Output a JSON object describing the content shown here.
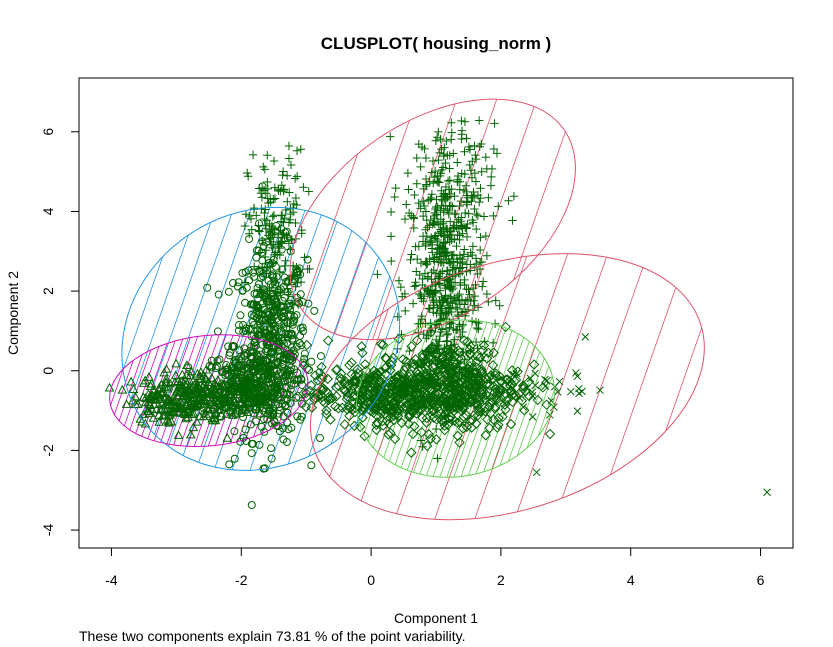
{
  "chart_data": {
    "type": "scatter",
    "title": "CLUSPLOT( housing_norm )",
    "xlabel": "Component 1",
    "ylabel": "Component 2",
    "subtitle": "These two components explain 73.81 % of the point variability.",
    "xlim": [
      -4.5,
      6.5
    ],
    "ylim": [
      -4.45,
      7.35
    ],
    "x_ticks": [
      -4,
      -2,
      0,
      2,
      4,
      6
    ],
    "y_ticks": [
      -4,
      -2,
      0,
      2,
      4,
      6
    ],
    "point_color": "#006400",
    "clusters": [
      {
        "marker": "plus",
        "ellipse": {
          "cx": 0.95,
          "cy": 3.8,
          "rx": 2.45,
          "ry": 2.45,
          "angle": -34
        },
        "ellipse_color": "#DF536B",
        "shade_color": "#DF536B",
        "shade_density": "sparse",
        "center": [
          1.2,
          3.1
        ]
      },
      {
        "marker": "circle",
        "ellipse": {
          "cx": -1.7,
          "cy": 0.8,
          "rx": 1.95,
          "ry": 3.6,
          "angle": 58
        },
        "ellipse_color": "#2297E6",
        "shade_color": "#2297E6",
        "shade_density": "medium",
        "center": [
          -1.7,
          0.6
        ]
      },
      {
        "marker": "triangle",
        "ellipse": {
          "cx": -2.5,
          "cy": -0.5,
          "rx": 0.85,
          "ry": 2.5,
          "angle": 84
        },
        "ellipse_color": "#CD0BBC",
        "shade_color": "#CD0BBC",
        "shade_density": "dense",
        "center": [
          -2.5,
          -0.6
        ]
      },
      {
        "marker": "diamond",
        "ellipse": {
          "cx": 1.3,
          "cy": -0.7,
          "rx": 1.2,
          "ry": 2.5,
          "angle": 80
        },
        "ellipse_color": "#61D04F",
        "shade_color": "#61D04F",
        "shade_density": "dense",
        "center": [
          1.3,
          -0.7
        ]
      },
      {
        "marker": "cross",
        "ellipse": {
          "cx": 2.1,
          "cy": -0.4,
          "rx": 1.9,
          "ry": 5.1,
          "angle": 72
        },
        "ellipse_color": "#DF536B",
        "shade_color": "#DF536B",
        "shade_density": "sparse",
        "center": [
          2.1,
          -0.4
        ]
      }
    ]
  }
}
